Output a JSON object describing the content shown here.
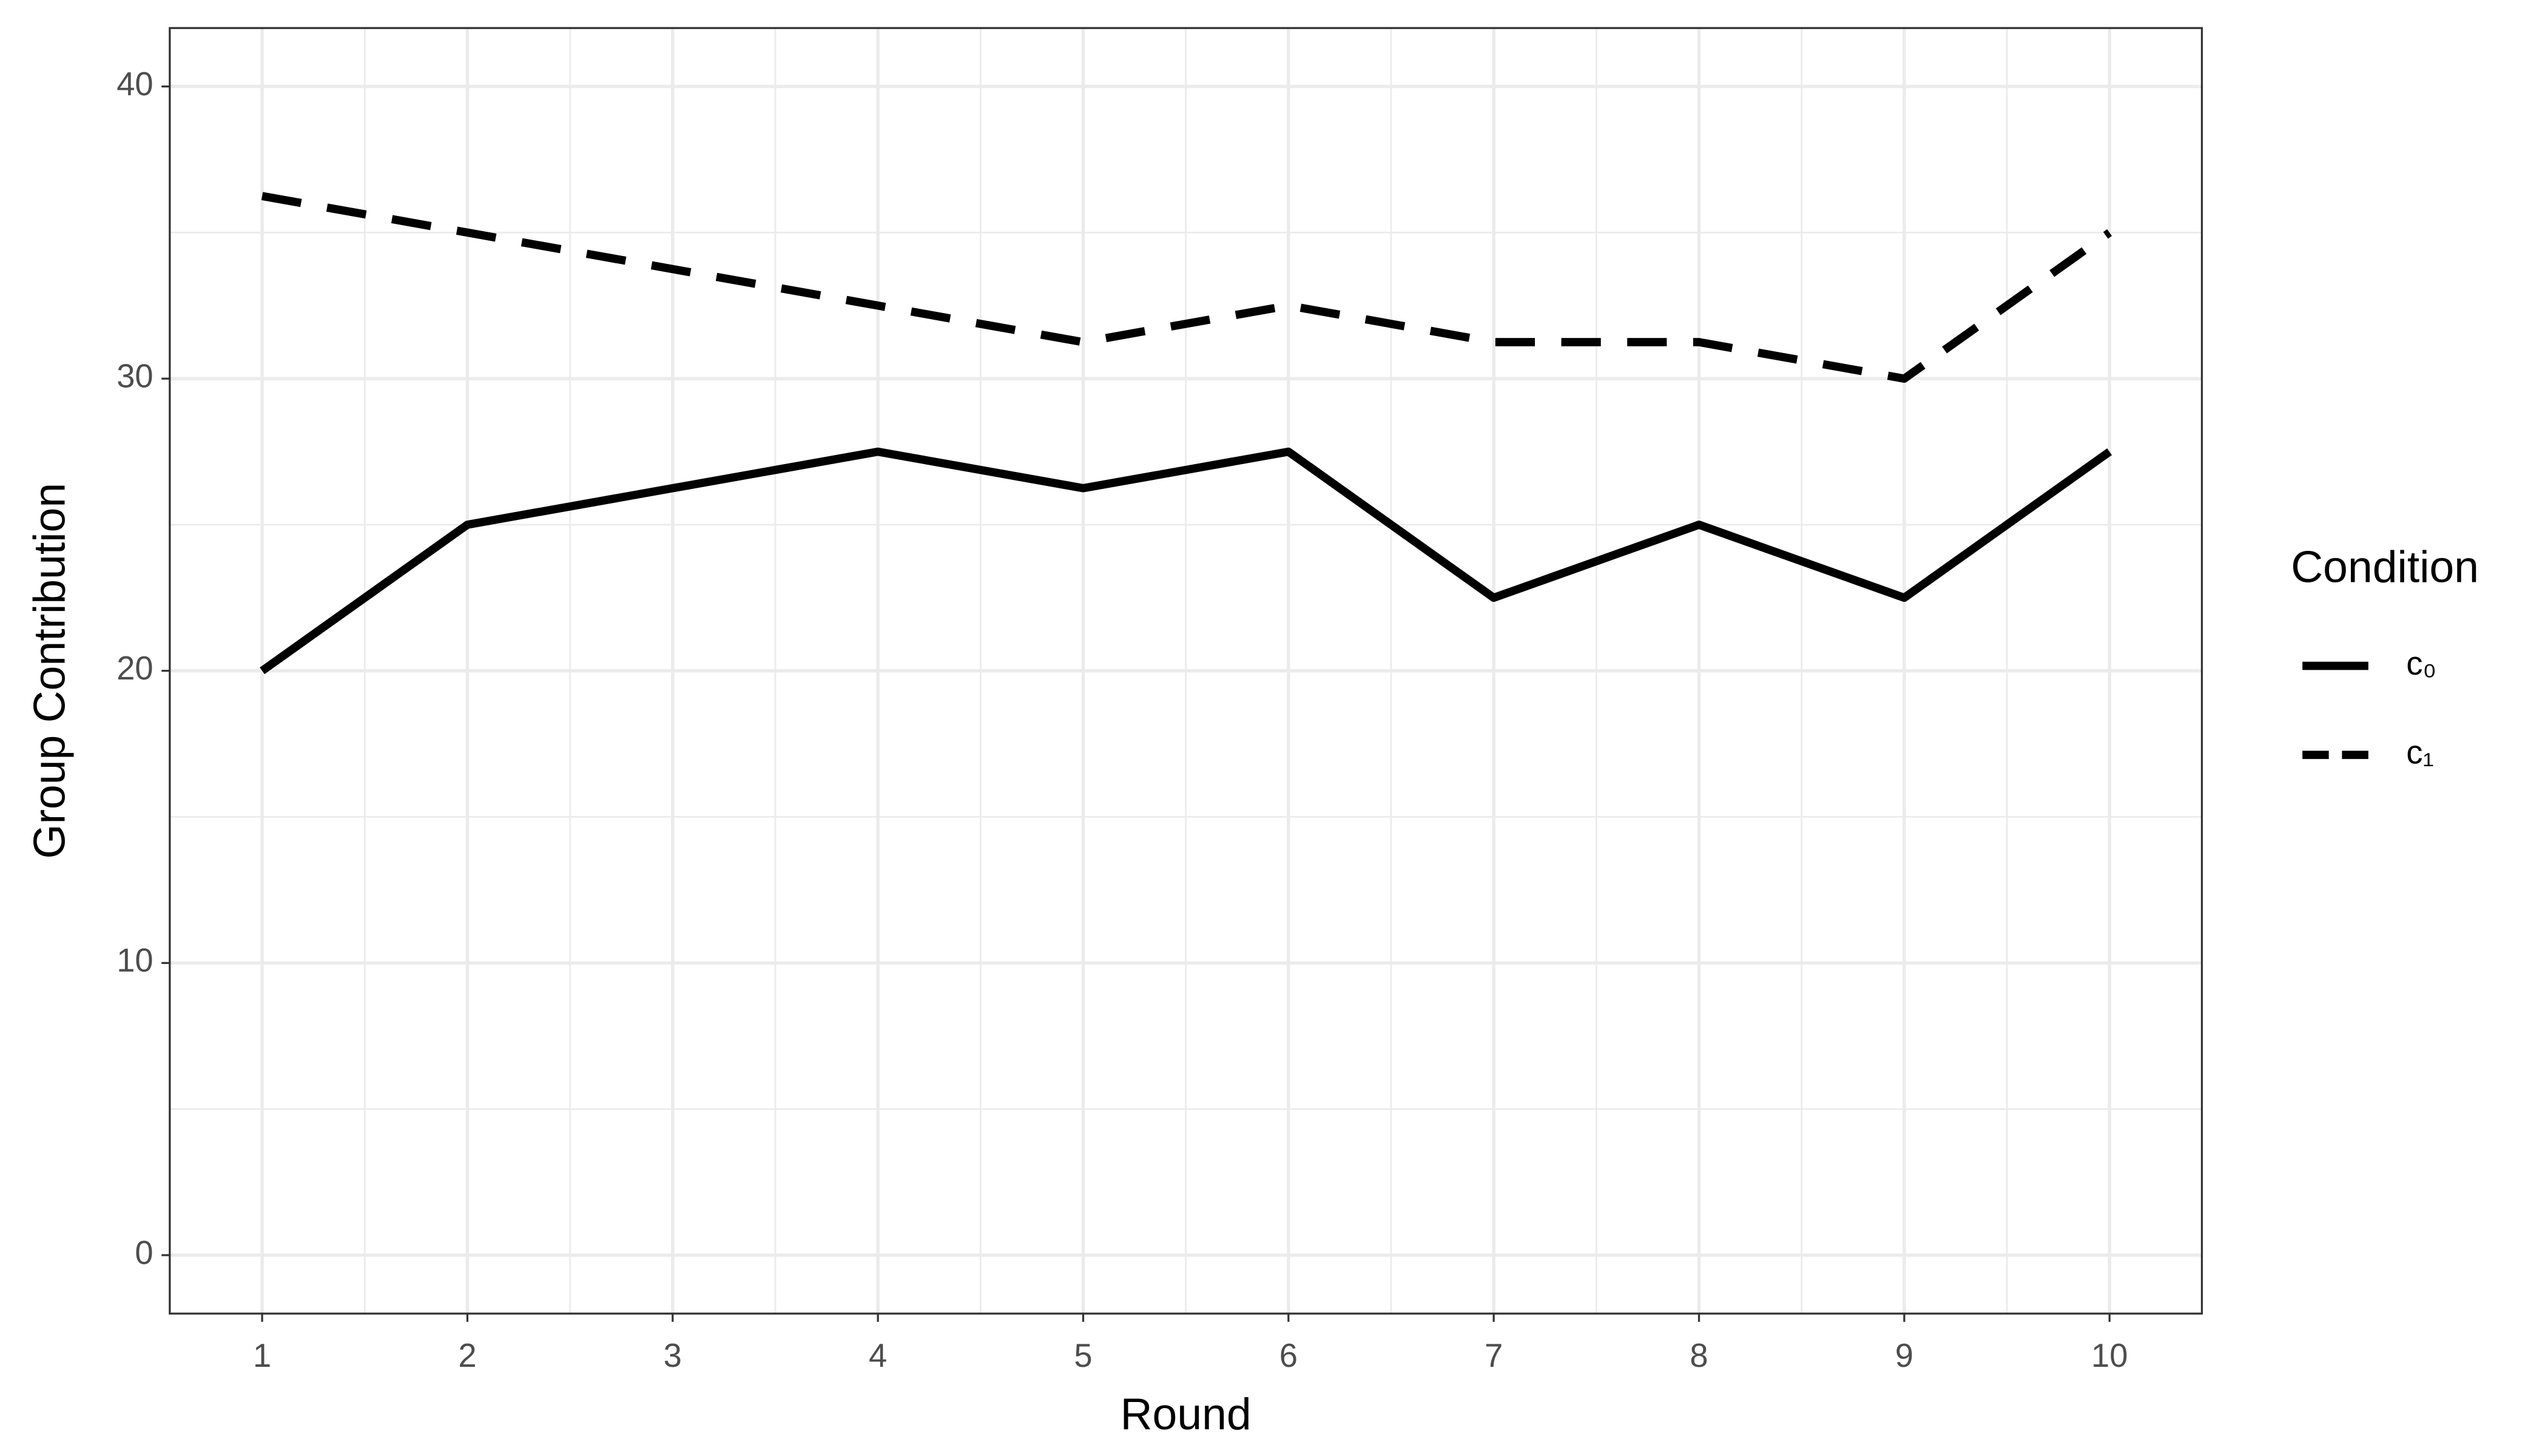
{
  "chart_data": {
    "type": "line",
    "x_label": "Round",
    "y_label": "Group Contribution",
    "legend_title": "Condition",
    "x": [
      1,
      2,
      3,
      4,
      5,
      6,
      7,
      8,
      9,
      10
    ],
    "series": [
      {
        "name": "c₀",
        "color": "#000000",
        "linestyle": "solid",
        "values": [
          20,
          25,
          26.25,
          27.5,
          26.25,
          27.5,
          22.5,
          25,
          22.5,
          27.5
        ]
      },
      {
        "name": "c₁",
        "color": "#000000",
        "linestyle": "dashed",
        "values": [
          36.25,
          35,
          33.75,
          32.5,
          31.25,
          32.5,
          31.25,
          31.25,
          30,
          35
        ]
      }
    ],
    "xlim": [
      0.55,
      10.45
    ],
    "ylim": [
      -2,
      42
    ],
    "xticks": [
      1,
      2,
      3,
      4,
      5,
      6,
      7,
      8,
      9,
      10
    ],
    "yticks": [
      0,
      10,
      20,
      30,
      40
    ],
    "grid": true,
    "legend_position": "right"
  }
}
